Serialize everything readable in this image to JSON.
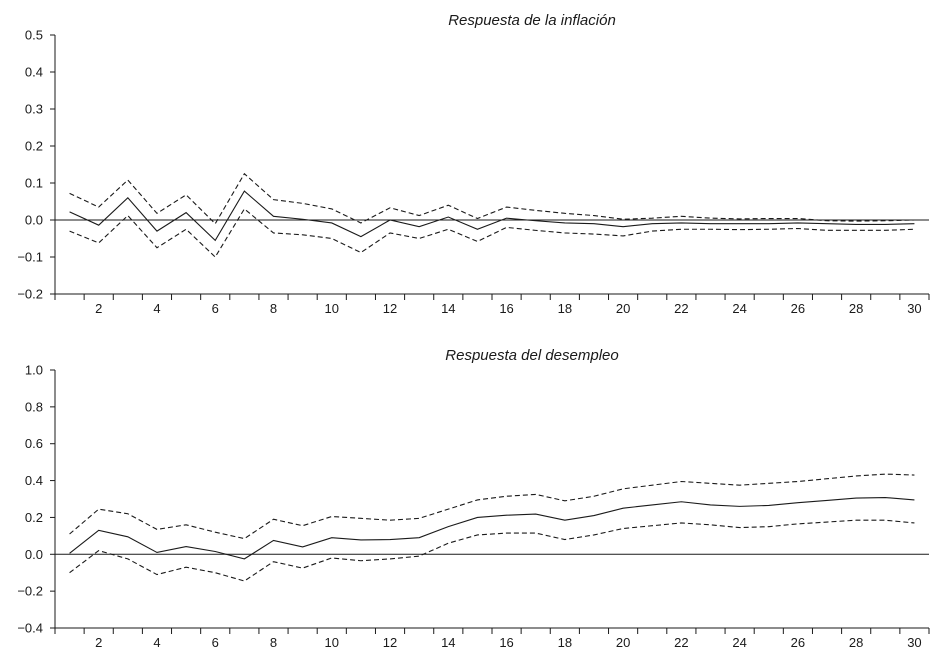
{
  "chart_data": [
    {
      "type": "line",
      "title": "Respuesta de la inflación",
      "xlabel": "",
      "ylabel": "",
      "x": [
        1,
        2,
        3,
        4,
        5,
        6,
        7,
        8,
        9,
        10,
        11,
        12,
        13,
        14,
        15,
        16,
        17,
        18,
        19,
        20,
        21,
        22,
        23,
        24,
        25,
        26,
        27,
        28,
        29,
        30
      ],
      "xticks": [
        2,
        4,
        6,
        8,
        10,
        12,
        14,
        16,
        18,
        20,
        22,
        24,
        26,
        28,
        30
      ],
      "xlim": [
        1,
        30
      ],
      "ylim": [
        -0.2,
        0.5
      ],
      "yticks": [
        -0.2,
        -0.1,
        0.0,
        0.1,
        0.2,
        0.3,
        0.4,
        0.5
      ],
      "ytick_labels": [
        "−0.2",
        "−0.1",
        "0.0",
        "0.1",
        "0.2",
        "0.3",
        "0.4",
        "0.5"
      ],
      "grid": false,
      "legend": "none",
      "series": [
        {
          "style": "solid",
          "values": [
            0.022,
            -0.014,
            0.06,
            -0.03,
            0.02,
            -0.055,
            0.078,
            0.01,
            0.002,
            -0.008,
            -0.045,
            0.0,
            -0.018,
            0.008,
            -0.025,
            0.005,
            -0.002,
            -0.008,
            -0.01,
            -0.018,
            -0.01,
            -0.008,
            -0.01,
            -0.01,
            -0.01,
            -0.008,
            -0.01,
            -0.012,
            -0.012,
            -0.01
          ]
        },
        {
          "style": "dashed",
          "values": [
            0.072,
            0.035,
            0.108,
            0.018,
            0.068,
            -0.01,
            0.125,
            0.055,
            0.045,
            0.03,
            -0.008,
            0.033,
            0.012,
            0.04,
            0.004,
            0.035,
            0.026,
            0.018,
            0.012,
            0.002,
            0.005,
            0.01,
            0.005,
            0.003,
            0.004,
            0.004,
            -0.002,
            -0.003,
            -0.002,
            0.0
          ]
        },
        {
          "style": "dashed",
          "values": [
            -0.03,
            -0.062,
            0.012,
            -0.075,
            -0.025,
            -0.1,
            0.03,
            -0.035,
            -0.04,
            -0.05,
            -0.088,
            -0.035,
            -0.05,
            -0.025,
            -0.058,
            -0.02,
            -0.028,
            -0.035,
            -0.038,
            -0.043,
            -0.03,
            -0.025,
            -0.025,
            -0.026,
            -0.025,
            -0.023,
            -0.028,
            -0.028,
            -0.028,
            -0.025
          ]
        }
      ]
    },
    {
      "type": "line",
      "title": "Respuesta del desempleo",
      "xlabel": "",
      "ylabel": "",
      "x": [
        1,
        2,
        3,
        4,
        5,
        6,
        7,
        8,
        9,
        10,
        11,
        12,
        13,
        14,
        15,
        16,
        17,
        18,
        19,
        20,
        21,
        22,
        23,
        24,
        25,
        26,
        27,
        28,
        29,
        30
      ],
      "xticks": [
        2,
        4,
        6,
        8,
        10,
        12,
        14,
        16,
        18,
        20,
        22,
        24,
        26,
        28,
        30
      ],
      "xlim": [
        1,
        30
      ],
      "ylim": [
        -0.4,
        1.0
      ],
      "yticks": [
        -0.4,
        -0.2,
        0.0,
        0.2,
        0.4,
        0.6,
        0.8,
        1.0
      ],
      "ytick_labels": [
        "−0.4",
        "−0.2",
        "0.0",
        "0.2",
        "0.4",
        "0.6",
        "0.8",
        "1.0"
      ],
      "grid": false,
      "legend": "none",
      "series": [
        {
          "style": "solid",
          "values": [
            0.005,
            0.13,
            0.095,
            0.01,
            0.042,
            0.015,
            -0.025,
            0.075,
            0.04,
            0.09,
            0.078,
            0.08,
            0.09,
            0.15,
            0.2,
            0.212,
            0.218,
            0.185,
            0.21,
            0.25,
            0.268,
            0.285,
            0.268,
            0.26,
            0.265,
            0.28,
            0.292,
            0.305,
            0.308,
            0.295
          ]
        },
        {
          "style": "dashed",
          "values": [
            0.11,
            0.245,
            0.22,
            0.135,
            0.16,
            0.12,
            0.085,
            0.19,
            0.155,
            0.205,
            0.195,
            0.185,
            0.195,
            0.245,
            0.295,
            0.315,
            0.325,
            0.29,
            0.315,
            0.355,
            0.375,
            0.395,
            0.385,
            0.375,
            0.385,
            0.395,
            0.41,
            0.425,
            0.435,
            0.43
          ]
        },
        {
          "style": "dashed",
          "values": [
            -0.1,
            0.02,
            -0.025,
            -0.11,
            -0.07,
            -0.1,
            -0.145,
            -0.04,
            -0.075,
            -0.02,
            -0.035,
            -0.025,
            -0.01,
            0.06,
            0.105,
            0.115,
            0.115,
            0.08,
            0.105,
            0.14,
            0.155,
            0.17,
            0.16,
            0.145,
            0.15,
            0.165,
            0.175,
            0.185,
            0.185,
            0.17
          ]
        }
      ]
    }
  ]
}
